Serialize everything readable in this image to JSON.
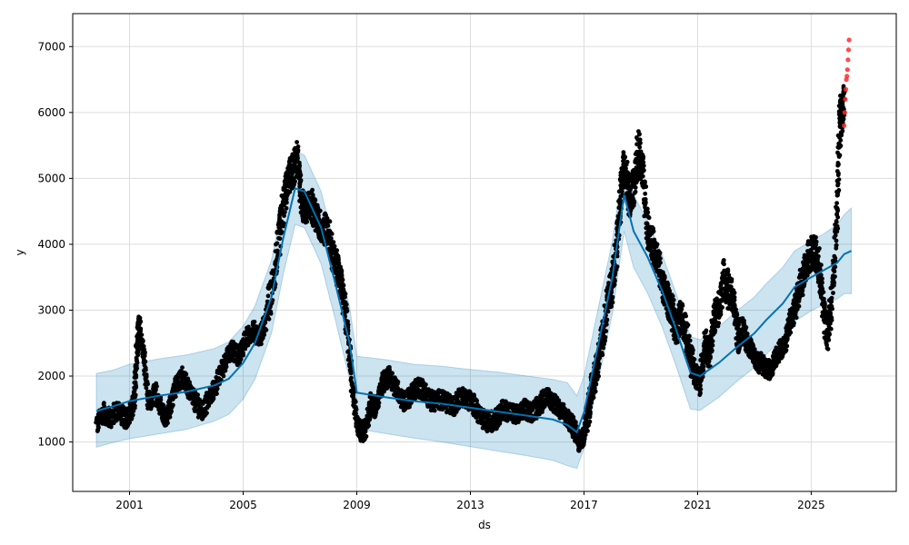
{
  "chart_data": {
    "type": "line",
    "xlabel": "ds",
    "ylabel": "y",
    "xlim": [
      "1999-01-01",
      "2027-12-31"
    ],
    "ylim": [
      250,
      7500
    ],
    "x_ticks": [
      "2001",
      "2005",
      "2009",
      "2013",
      "2017",
      "2021",
      "2025"
    ],
    "y_ticks": [
      "1000",
      "2000",
      "3000",
      "4000",
      "5000",
      "6000",
      "7000"
    ],
    "grid": true,
    "colors": {
      "observed": "#000000",
      "forecast": "#0072B2",
      "interval": "#0072B2",
      "flagged": "#FF2A2A",
      "grid": "#dddddd"
    },
    "series": [
      {
        "kind": "forecast",
        "x": [
          "1999-11-01",
          "2000-06-01",
          "2001-01-01",
          "2002-01-01",
          "2003-01-01",
          "2004-01-01",
          "2004-07-01",
          "2005-01-01",
          "2005-06-01",
          "2006-01-01",
          "2006-06-01",
          "2006-11-01",
          "2007-03-01",
          "2007-10-01",
          "2008-04-01",
          "2008-10-01",
          "2009-01-01",
          "2010-01-01",
          "2011-01-01",
          "2012-01-01",
          "2013-01-01",
          "2014-01-01",
          "2015-01-01",
          "2015-12-01",
          "2016-06-01",
          "2016-10-01",
          "2017-01-01",
          "2017-06-01",
          "2018-01-01",
          "2018-06-01",
          "2018-10-01",
          "2019-04-01",
          "2019-10-01",
          "2020-04-01",
          "2020-10-01",
          "2021-02-01",
          "2021-10-01",
          "2022-06-01",
          "2023-01-01",
          "2023-06-01",
          "2024-01-01",
          "2024-06-01",
          "2025-01-01",
          "2025-06-01",
          "2025-12-01",
          "2026-03-01",
          "2026-06-01"
        ],
        "y": [
          1470,
          1540,
          1620,
          1700,
          1760,
          1860,
          1960,
          2200,
          2500,
          3200,
          4100,
          4850,
          4800,
          4250,
          3400,
          2500,
          1750,
          1680,
          1620,
          1580,
          1520,
          1460,
          1400,
          1340,
          1260,
          1150,
          1450,
          2300,
          3500,
          4750,
          4200,
          3800,
          3300,
          2700,
          2050,
          2000,
          2200,
          2450,
          2650,
          2850,
          3100,
          3350,
          3500,
          3600,
          3720,
          3850,
          3900
        ]
      },
      {
        "kind": "interval",
        "x": [
          "1999-11-01",
          "2000-06-01",
          "2001-01-01",
          "2002-01-01",
          "2003-01-01",
          "2004-01-01",
          "2004-07-01",
          "2005-01-01",
          "2005-06-01",
          "2006-01-01",
          "2006-06-01",
          "2006-11-01",
          "2007-03-01",
          "2007-10-01",
          "2008-04-01",
          "2008-10-01",
          "2009-01-01",
          "2010-01-01",
          "2011-01-01",
          "2012-01-01",
          "2013-01-01",
          "2014-01-01",
          "2015-01-01",
          "2015-12-01",
          "2016-06-01",
          "2016-10-01",
          "2017-01-01",
          "2017-06-01",
          "2018-01-01",
          "2018-06-01",
          "2018-10-01",
          "2019-04-01",
          "2019-10-01",
          "2020-04-01",
          "2020-10-01",
          "2021-02-01",
          "2021-10-01",
          "2022-06-01",
          "2023-01-01",
          "2023-06-01",
          "2024-01-01",
          "2024-06-01",
          "2025-01-01",
          "2025-06-01",
          "2025-12-01",
          "2026-03-01",
          "2026-06-01"
        ],
        "lower": [
          920,
          990,
          1050,
          1120,
          1190,
          1320,
          1420,
          1650,
          1950,
          2650,
          3550,
          4300,
          4250,
          3700,
          2850,
          1950,
          1200,
          1130,
          1060,
          1000,
          930,
          860,
          790,
          720,
          640,
          600,
          900,
          1750,
          2950,
          4200,
          3650,
          3250,
          2750,
          2150,
          1500,
          1480,
          1680,
          1930,
          2130,
          2330,
          2580,
          2830,
          2990,
          3080,
          3170,
          3250,
          3250
        ],
        "upper": [
          2040,
          2090,
          2180,
          2260,
          2320,
          2420,
          2520,
          2760,
          3060,
          3760,
          4660,
          5430,
          5350,
          4800,
          3950,
          3050,
          2300,
          2250,
          2180,
          2150,
          2100,
          2060,
          2000,
          1950,
          1900,
          1700,
          2000,
          2850,
          4050,
          5300,
          4750,
          4350,
          3850,
          3250,
          2600,
          2550,
          2750,
          3000,
          3200,
          3400,
          3650,
          3900,
          4050,
          4150,
          4300,
          4450,
          4550
        ]
      },
      {
        "kind": "observed",
        "x": [
          "1999-11-01",
          "2000-02-01",
          "2000-05-01",
          "2000-08-01",
          "2000-11-01",
          "2001-01-01",
          "2001-03-01",
          "2001-04-01",
          "2001-05-01",
          "2001-07-01",
          "2001-09-01",
          "2001-12-01",
          "2002-03-01",
          "2002-05-01",
          "2002-08-01",
          "2002-11-01",
          "2003-02-01",
          "2003-05-01",
          "2003-08-01",
          "2003-11-01",
          "2004-02-01",
          "2004-05-01",
          "2004-08-01",
          "2004-11-01",
          "2005-02-01",
          "2005-05-01",
          "2005-08-01",
          "2005-10-01",
          "2006-01-01",
          "2006-04-01",
          "2006-06-01",
          "2006-08-01",
          "2006-10-01",
          "2006-12-01",
          "2007-02-01",
          "2007-04-01",
          "2007-06-01",
          "2007-08-01",
          "2007-10-01",
          "2008-01-01",
          "2008-03-01",
          "2008-05-01",
          "2008-07-01",
          "2008-09-01",
          "2008-11-01",
          "2009-01-01",
          "2009-03-01",
          "2009-05-01",
          "2009-07-01",
          "2009-09-01",
          "2009-12-01",
          "2010-03-01",
          "2010-06-01",
          "2010-09-01",
          "2010-12-01",
          "2011-03-01",
          "2011-06-01",
          "2011-09-01",
          "2011-12-01",
          "2012-03-01",
          "2012-06-01",
          "2012-09-01",
          "2012-12-01",
          "2013-03-01",
          "2013-06-01",
          "2013-09-01",
          "2013-12-01",
          "2014-03-01",
          "2014-06-01",
          "2014-09-01",
          "2014-12-01",
          "2015-03-01",
          "2015-06-01",
          "2015-09-01",
          "2015-12-01",
          "2016-03-01",
          "2016-06-01",
          "2016-09-01",
          "2016-11-01",
          "2017-01-01",
          "2017-03-01",
          "2017-05-01",
          "2017-07-01",
          "2017-09-01",
          "2017-11-01",
          "2018-01-01",
          "2018-03-01",
          "2018-05-01",
          "2018-06-01",
          "2018-08-01",
          "2018-10-01",
          "2018-12-01",
          "2019-02-01",
          "2019-04-01",
          "2019-06-01",
          "2019-08-01",
          "2019-10-01",
          "2019-12-01",
          "2020-02-01",
          "2020-04-01",
          "2020-06-01",
          "2020-08-01",
          "2020-10-01",
          "2020-12-01",
          "2021-02-01",
          "2021-04-01",
          "2021-06-01",
          "2021-08-01",
          "2021-10-01",
          "2021-12-01",
          "2022-02-01",
          "2022-04-01",
          "2022-06-01",
          "2022-08-01",
          "2022-10-01",
          "2022-12-01",
          "2023-02-01",
          "2023-04-01",
          "2023-06-01",
          "2023-08-01",
          "2023-10-01",
          "2023-12-01",
          "2024-02-01",
          "2024-04-01",
          "2024-06-01",
          "2024-08-01",
          "2024-10-01",
          "2024-12-01",
          "2025-02-01",
          "2025-04-01",
          "2025-06-01",
          "2025-08-01",
          "2025-10-01",
          "2025-12-01",
          "2026-01-01",
          "2026-02-01",
          "2026-03-01"
        ],
        "y": [
          1250,
          1450,
          1350,
          1500,
          1350,
          1400,
          1600,
          2250,
          2750,
          2400,
          1600,
          1750,
          1450,
          1350,
          1800,
          2000,
          1800,
          1600,
          1450,
          1700,
          1900,
          2200,
          2400,
          2300,
          2550,
          2700,
          2600,
          2750,
          3300,
          4000,
          4600,
          5000,
          5100,
          5300,
          4600,
          4500,
          4600,
          4400,
          4250,
          4200,
          3800,
          3600,
          3300,
          2700,
          1900,
          1300,
          1150,
          1200,
          1600,
          1500,
          1900,
          2000,
          1800,
          1600,
          1700,
          1850,
          1750,
          1600,
          1650,
          1600,
          1550,
          1700,
          1650,
          1550,
          1350,
          1300,
          1350,
          1500,
          1450,
          1400,
          1500,
          1450,
          1550,
          1700,
          1600,
          1500,
          1350,
          1200,
          1000,
          1100,
          1500,
          1900,
          2200,
          2600,
          3100,
          3400,
          4000,
          4900,
          5200,
          4700,
          4900,
          5400,
          5000,
          4200,
          4000,
          3800,
          3400,
          3200,
          3000,
          2700,
          2900,
          2700,
          2300,
          2000,
          1900,
          2500,
          2300,
          2900,
          3000,
          3500,
          3300,
          3200,
          2600,
          2700,
          2500,
          2400,
          2200,
          2200,
          2100,
          2100,
          2250,
          2400,
          2500,
          2800,
          3000,
          3300,
          3600,
          3800,
          3900,
          3700,
          3100,
          2600,
          3200,
          4600,
          5800,
          6000,
          6200
        ],
        "spread": [
          150,
          150,
          150,
          150,
          150,
          150,
          150,
          200,
          200,
          150,
          150,
          150,
          150,
          150,
          150,
          150,
          150,
          150,
          150,
          150,
          150,
          150,
          150,
          150,
          150,
          150,
          150,
          150,
          300,
          300,
          300,
          250,
          250,
          250,
          250,
          250,
          250,
          250,
          250,
          250,
          250,
          250,
          250,
          250,
          200,
          150,
          150,
          150,
          150,
          150,
          150,
          150,
          150,
          150,
          150,
          150,
          150,
          150,
          150,
          150,
          150,
          150,
          150,
          150,
          150,
          150,
          150,
          150,
          150,
          150,
          150,
          150,
          150,
          150,
          150,
          150,
          150,
          150,
          150,
          150,
          250,
          250,
          250,
          250,
          250,
          300,
          300,
          300,
          300,
          300,
          300,
          400,
          300,
          250,
          250,
          250,
          250,
          250,
          250,
          250,
          250,
          250,
          250,
          200,
          200,
          250,
          250,
          250,
          250,
          300,
          300,
          250,
          250,
          200,
          150,
          150,
          150,
          150,
          150,
          150,
          150,
          150,
          150,
          150,
          200,
          250,
          250,
          250,
          250,
          300,
          300,
          300,
          300,
          400,
          400,
          300,
          300
        ]
      },
      {
        "kind": "flagged",
        "x": [
          "2026-03-01",
          "2026-03-08",
          "2026-03-15",
          "2026-03-22",
          "2026-03-29",
          "2026-04-05",
          "2026-04-12",
          "2026-04-19",
          "2026-04-26",
          "2026-05-03"
        ],
        "y": [
          5800,
          6000,
          6200,
          6350,
          6500,
          6550,
          6650,
          6800,
          6950,
          7100
        ]
      }
    ]
  }
}
